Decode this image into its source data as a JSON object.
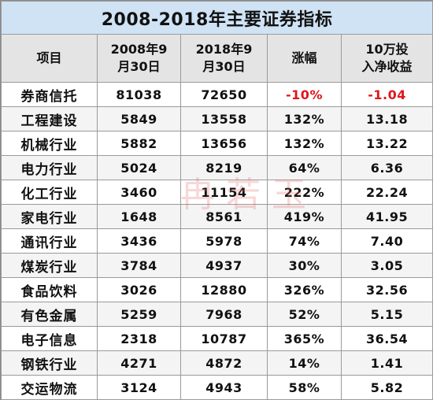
{
  "title": "2008-2018年主要证券指标",
  "headers": {
    "item": "项目",
    "c1_l1": "2008年9",
    "c1_l2": "月30日",
    "c2_l1": "2018年9",
    "c2_l2": "月30日",
    "change": "涨幅",
    "ret_l1": "10万投",
    "ret_l2": "入净收益"
  },
  "rows": [
    {
      "name": "券商信托",
      "v2008": "81038",
      "v2018": "72650",
      "change": "-10%",
      "ret": "-1.04"
    },
    {
      "name": "工程建设",
      "v2008": "5849",
      "v2018": "13558",
      "change": "132%",
      "ret": "13.18"
    },
    {
      "name": "机械行业",
      "v2008": "5882",
      "v2018": "13656",
      "change": "132%",
      "ret": "13.22"
    },
    {
      "name": "电力行业",
      "v2008": "5024",
      "v2018": "8219",
      "change": "64%",
      "ret": "6.36"
    },
    {
      "name": "化工行业",
      "v2008": "3460",
      "v2018": "11154",
      "change": "222%",
      "ret": "22.24"
    },
    {
      "name": "家电行业",
      "v2008": "1648",
      "v2018": "8561",
      "change": "419%",
      "ret": "41.95"
    },
    {
      "name": "通讯行业",
      "v2008": "3436",
      "v2018": "5978",
      "change": "74%",
      "ret": "7.40"
    },
    {
      "name": "煤炭行业",
      "v2008": "3784",
      "v2018": "4937",
      "change": "30%",
      "ret": "3.05"
    },
    {
      "name": "食品饮料",
      "v2008": "3026",
      "v2018": "12880",
      "change": "326%",
      "ret": "32.56"
    },
    {
      "name": "有色金属",
      "v2008": "5259",
      "v2018": "7968",
      "change": "52%",
      "ret": "5.15"
    },
    {
      "name": "电子信息",
      "v2008": "2318",
      "v2018": "10787",
      "change": "365%",
      "ret": "36.54"
    },
    {
      "name": "钢铁行业",
      "v2008": "4271",
      "v2018": "4872",
      "change": "14%",
      "ret": "1.41"
    },
    {
      "name": "交运物流",
      "v2008": "3124",
      "v2018": "4943",
      "change": "58%",
      "ret": "5.82"
    }
  ],
  "watermark": "冉若玉",
  "colors": {
    "title_bg": "#cfe3f5",
    "header_bg": "#e4e4e4",
    "negative": "#e0161b"
  }
}
